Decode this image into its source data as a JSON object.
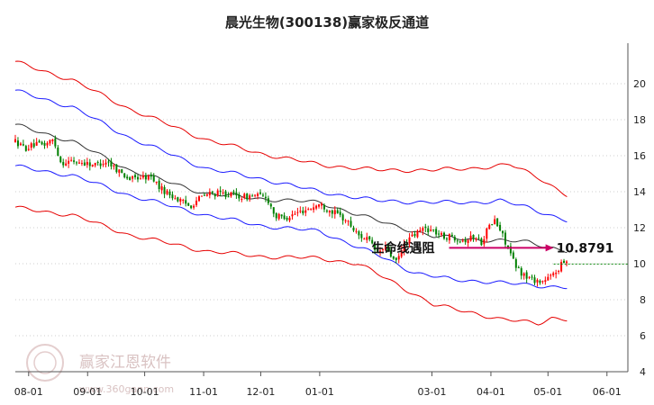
{
  "chart_data": {
    "type": "candlestick",
    "title": "晨光生物(300138)赢家极反通道",
    "xlabel": "",
    "ylabel": "",
    "ylim": [
      4,
      22
    ],
    "yticks": [
      4,
      6,
      8,
      10,
      12,
      14,
      16,
      18,
      20
    ],
    "grid": "horizontal dotted",
    "x_ticks": [
      {
        "label": "08-01",
        "day": 7
      },
      {
        "label": "09-01",
        "day": 38
      },
      {
        "label": "10-01",
        "day": 68
      },
      {
        "label": "11-01",
        "day": 99
      },
      {
        "label": "12-01",
        "day": 129
      },
      {
        "label": "01-01",
        "day": 160
      },
      {
        "label": "03-01",
        "day": 219
      },
      {
        "label": "04-01",
        "day": 250
      },
      {
        "label": "05-01",
        "day": 280
      },
      {
        "label": "06-01",
        "day": 311
      }
    ],
    "x_range_days": [
      0,
      322
    ],
    "price_path": [
      [
        0,
        16.8
      ],
      [
        5,
        16.4
      ],
      [
        10,
        16.6
      ],
      [
        15,
        16.6
      ],
      [
        20,
        16.9
      ],
      [
        24,
        15.6
      ],
      [
        30,
        15.7
      ],
      [
        36,
        15.6
      ],
      [
        42,
        15.5
      ],
      [
        48,
        15.7
      ],
      [
        54,
        15.2
      ],
      [
        60,
        14.7
      ],
      [
        66,
        14.8
      ],
      [
        72,
        14.8
      ],
      [
        76,
        14.2
      ],
      [
        82,
        13.8
      ],
      [
        88,
        13.4
      ],
      [
        92,
        13.2
      ],
      [
        96,
        13.6
      ],
      [
        102,
        13.9
      ],
      [
        108,
        13.9
      ],
      [
        115,
        13.8
      ],
      [
        120,
        13.7
      ],
      [
        126,
        13.8
      ],
      [
        132,
        13.7
      ],
      [
        137,
        12.6
      ],
      [
        143,
        12.6
      ],
      [
        150,
        12.9
      ],
      [
        155,
        13.1
      ],
      [
        160,
        13.3
      ],
      [
        165,
        13.0
      ],
      [
        170,
        12.7
      ],
      [
        175,
        12.3
      ],
      [
        180,
        11.6
      ],
      [
        185,
        11.4
      ],
      [
        190,
        10.6
      ],
      [
        195,
        10.9
      ],
      [
        200,
        10.0
      ],
      [
        205,
        11.2
      ],
      [
        210,
        11.6
      ],
      [
        215,
        12.0
      ],
      [
        220,
        11.8
      ],
      [
        225,
        11.5
      ],
      [
        230,
        11.5
      ],
      [
        236,
        11.3
      ],
      [
        241,
        11.5
      ],
      [
        245,
        11.2
      ],
      [
        248,
        11.9
      ],
      [
        252,
        12.4
      ],
      [
        256,
        11.6
      ],
      [
        259,
        10.9
      ],
      [
        263,
        9.8
      ],
      [
        268,
        9.3
      ],
      [
        273,
        9.1
      ],
      [
        277,
        9.0
      ],
      [
        282,
        9.3
      ],
      [
        286,
        9.8
      ],
      [
        290,
        10.3
      ]
    ],
    "channel": {
      "upper": [
        [
          0,
          21.2
        ],
        [
          30,
          20.2
        ],
        [
          60,
          18.6
        ],
        [
          100,
          16.9
        ],
        [
          130,
          16.1
        ],
        [
          160,
          15.5
        ],
        [
          190,
          15.2
        ],
        [
          220,
          15.2
        ],
        [
          240,
          15.3
        ],
        [
          260,
          15.5
        ],
        [
          275,
          14.8
        ],
        [
          290,
          13.8
        ]
      ],
      "upper_mid": [
        [
          0,
          19.6
        ],
        [
          30,
          18.7
        ],
        [
          60,
          17.0
        ],
        [
          100,
          15.3
        ],
        [
          130,
          14.7
        ],
        [
          160,
          14.0
        ],
        [
          190,
          13.5
        ],
        [
          220,
          13.4
        ],
        [
          240,
          13.4
        ],
        [
          255,
          13.5
        ],
        [
          270,
          13.1
        ],
        [
          290,
          12.4
        ]
      ],
      "middle": [
        [
          0,
          17.7
        ],
        [
          30,
          16.8
        ],
        [
          60,
          15.2
        ],
        [
          100,
          13.9
        ],
        [
          130,
          13.6
        ],
        [
          160,
          13.4
        ],
        [
          190,
          12.4
        ],
        [
          220,
          11.5
        ],
        [
          250,
          11.3
        ],
        [
          270,
          11.2
        ],
        [
          290,
          10.7
        ]
      ],
      "lower_mid": [
        [
          0,
          15.4
        ],
        [
          30,
          14.9
        ],
        [
          60,
          13.8
        ],
        [
          100,
          12.7
        ],
        [
          130,
          12.1
        ],
        [
          160,
          11.8
        ],
        [
          190,
          10.5
        ],
        [
          210,
          9.5
        ],
        [
          230,
          9.1
        ],
        [
          250,
          9.0
        ],
        [
          270,
          8.8
        ],
        [
          290,
          8.7
        ]
      ],
      "lower": [
        [
          0,
          13.1
        ],
        [
          30,
          12.7
        ],
        [
          60,
          11.6
        ],
        [
          100,
          10.7
        ],
        [
          130,
          10.4
        ],
        [
          160,
          10.3
        ],
        [
          180,
          10.0
        ],
        [
          200,
          8.9
        ],
        [
          220,
          7.7
        ],
        [
          240,
          7.3
        ],
        [
          255,
          6.9
        ],
        [
          265,
          6.8
        ],
        [
          275,
          6.7
        ],
        [
          282,
          7.0
        ],
        [
          290,
          6.9
        ]
      ]
    },
    "annotation": {
      "text": "生命线遇阻",
      "value_label": "10.8791",
      "value": 10.8791,
      "arrow_from_day": 228,
      "arrow_to_day": 283,
      "dotted_line_to_day": 322
    },
    "colors": {
      "up": "#ff0000",
      "down": "#008000",
      "upper_band": "#e60000",
      "mid_band": "#1a1aff",
      "middle_line": "#333333",
      "annotation_arrow": "#cc0066",
      "grid": "#cccccc"
    },
    "watermark": {
      "brand": "赢家江恩软件",
      "url": "www.360gann.com"
    }
  }
}
